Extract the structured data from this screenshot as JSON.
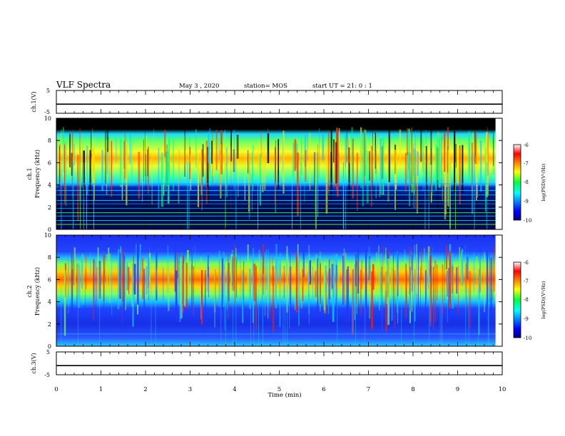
{
  "header": {
    "title": "VLF Spectra",
    "date": "May 3 , 2020",
    "station": "station= MOS",
    "start": "start UT = 21: 0 : 1"
  },
  "chart_data": {
    "type": "heatmap",
    "x_axis": {
      "label": "Time (min)",
      "range": [
        0,
        10
      ],
      "ticks": [
        "0",
        "1",
        "2",
        "3",
        "4",
        "5",
        "6",
        "7",
        "8",
        "9",
        "10"
      ]
    },
    "panels": [
      {
        "id": "ch1-waveform",
        "type": "line",
        "ylabel": "ch.1(V)",
        "ylim": [
          -5,
          5
        ],
        "ticks": [
          "5",
          "-5"
        ],
        "level": -1
      },
      {
        "id": "ch1-spectrogram",
        "type": "heatmap",
        "ylabel_top": "ch.1",
        "ylabel": "Frequency (kHz)",
        "ylim": [
          0,
          10
        ],
        "ticks": [
          "0",
          "2",
          "4",
          "6",
          "8",
          "10"
        ],
        "band_khz": [
          4,
          9
        ],
        "peak_khz": 6.5,
        "data_range_min": 9.85,
        "colorbar": {
          "label": "log(PSD)(V²/Hz)",
          "range": [
            -10,
            -6
          ],
          "ticks": [
            "-6",
            "-7",
            "-8",
            "-9",
            "-10"
          ]
        }
      },
      {
        "id": "ch2-spectrogram",
        "type": "heatmap",
        "ylabel_top": "ch.2",
        "ylabel": "Frequency (kHz)",
        "ylim": [
          0,
          10
        ],
        "ticks": [
          "0",
          "2",
          "4",
          "6",
          "8",
          "10"
        ],
        "band_khz": [
          4,
          8
        ],
        "peak_khz": 6,
        "data_range_min": 9.85,
        "colorbar": {
          "label": "log(PSD)(V²/Hz)",
          "range": [
            -10,
            -6
          ],
          "ticks": [
            "-6",
            "-7",
            "-8",
            "-9",
            "-10"
          ]
        }
      },
      {
        "id": "ch3-waveform",
        "type": "line",
        "ylabel": "ch.3(V)",
        "ylim": [
          -5,
          5
        ],
        "ticks": [
          "5",
          "-5"
        ],
        "level": -1
      }
    ]
  }
}
